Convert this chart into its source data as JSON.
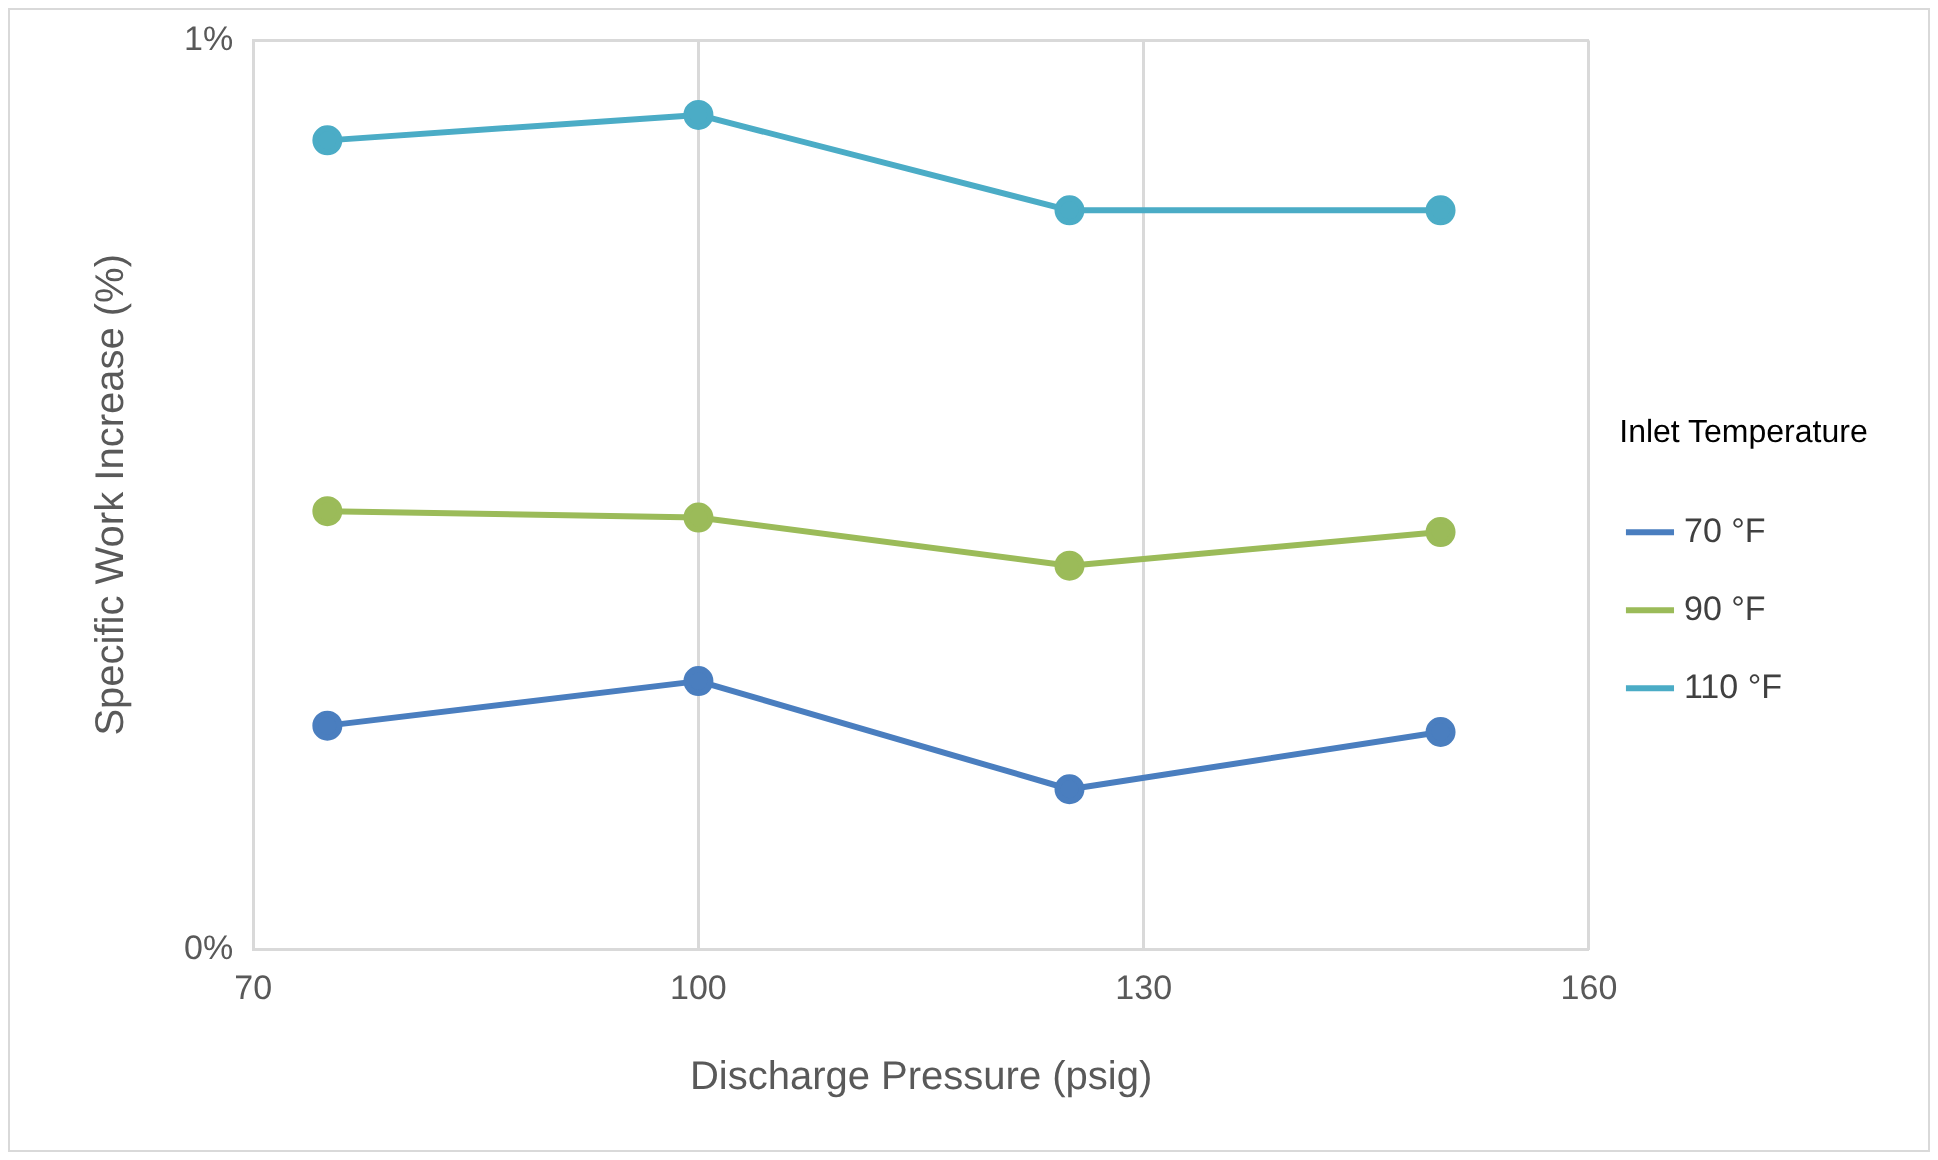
{
  "chart_data": {
    "type": "line",
    "xlabel": "Discharge Pressure (psig)",
    "ylabel": "Specific Work Increase (%)",
    "legend_title": "Inlet Temperature",
    "x": [
      75,
      100,
      125,
      150
    ],
    "series": [
      {
        "name": "70 °F",
        "color": "#4a7ebf",
        "values": [
          0.246,
          0.295,
          0.176,
          0.239
        ]
      },
      {
        "name": "90 °F",
        "color": "#9bbb59",
        "values": [
          0.482,
          0.475,
          0.422,
          0.459
        ]
      },
      {
        "name": "110 °F",
        "color": "#4bacc6",
        "values": [
          0.89,
          0.918,
          0.813,
          0.813
        ]
      }
    ],
    "xlim": [
      70,
      160
    ],
    "xticks": [
      70,
      100,
      130,
      160
    ],
    "ylim": [
      0,
      1
    ],
    "yticks": [
      {
        "value": 0,
        "label": "0%"
      },
      {
        "value": 1,
        "label": "1%"
      }
    ],
    "grid": true,
    "legend": "right",
    "marker": "circle",
    "line_style": "solid"
  }
}
